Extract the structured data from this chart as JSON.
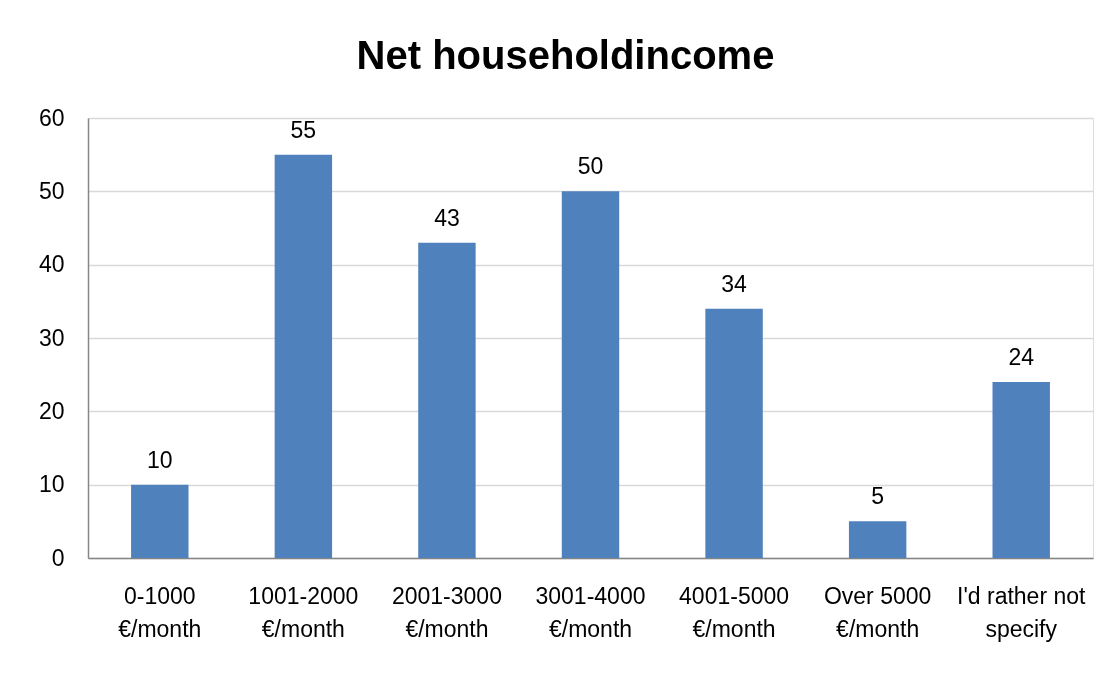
{
  "chart_data": {
    "type": "bar",
    "title": "Net householdincome",
    "categories": [
      "0-1000 €/month",
      "1001-2000 €/month",
      "2001-3000 €/month",
      "3001-4000 €/month",
      "4001-5000 €/month",
      "Over 5000 €/month",
      "I'd rather not specify"
    ],
    "values": [
      10,
      55,
      43,
      50,
      34,
      5,
      24
    ],
    "color": "#4f81bd",
    "ylim": [
      0,
      60
    ],
    "yticks": [
      0,
      10,
      20,
      30,
      40,
      50,
      60
    ],
    "grid": "y",
    "data_labels": true
  }
}
